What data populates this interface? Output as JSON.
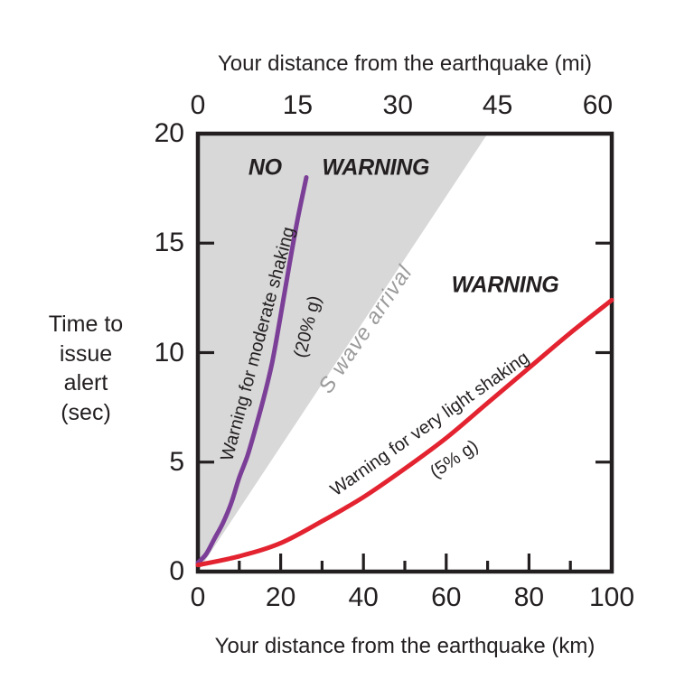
{
  "chart_data": {
    "type": "line",
    "top_axis": {
      "label": "Your distance from the earthquake (mi)",
      "unit": "mi",
      "ticks": [
        0,
        15,
        30,
        45,
        60
      ],
      "tick_positions_km": [
        0,
        24.1,
        48.3,
        72.4,
        96.6
      ]
    },
    "bottom_axis": {
      "label": "Your distance from the earthquake (km)",
      "unit": "km",
      "range": [
        0,
        100
      ],
      "major_ticks": [
        0,
        20,
        40,
        60,
        80,
        100
      ],
      "minor_ticks": [
        10,
        30,
        50,
        70,
        90
      ]
    },
    "y_axis": {
      "label": "Time to\nissue\nalert\n(sec)",
      "unit": "sec",
      "range": [
        0,
        20
      ],
      "ticks": [
        0,
        5,
        10,
        15,
        20
      ]
    },
    "regions": {
      "no_warning": {
        "label": "NO WARNING",
        "fill": "#d8d8d8",
        "boundary_label": "S wave arrival",
        "boundary_label_color": "#9b9b9b",
        "boundary_points_km_sec": [
          [
            0,
            0
          ],
          [
            70,
            20
          ]
        ]
      },
      "warning": {
        "label": "WARNING"
      }
    },
    "series": [
      {
        "name": "Warning for moderate shaking",
        "sublabel": "(20% g)",
        "color": "#7c3f98",
        "points_km_sec": [
          [
            0,
            0.4
          ],
          [
            2,
            0.8
          ],
          [
            4,
            1.5
          ],
          [
            6,
            2.2
          ],
          [
            8,
            3.1
          ],
          [
            10,
            4.3
          ],
          [
            12,
            5.3
          ],
          [
            14,
            6.6
          ],
          [
            16,
            8.0
          ],
          [
            18,
            9.6
          ],
          [
            20,
            11.7
          ],
          [
            22,
            13.9
          ],
          [
            24,
            16.0
          ],
          [
            26.2,
            18.0
          ]
        ]
      },
      {
        "name": "Warning for very light shaking",
        "sublabel": "(5% g)",
        "color": "#e32330",
        "points_km_sec": [
          [
            0,
            0.3
          ],
          [
            10,
            0.7
          ],
          [
            20,
            1.3
          ],
          [
            30,
            2.3
          ],
          [
            40,
            3.4
          ],
          [
            50,
            4.7
          ],
          [
            60,
            6.1
          ],
          [
            70,
            7.7
          ],
          [
            80,
            9.3
          ],
          [
            90,
            10.9
          ],
          [
            100,
            12.4
          ]
        ]
      }
    ],
    "ink_color": "#231f20",
    "grid": false,
    "legend": "labels-along-curves"
  }
}
